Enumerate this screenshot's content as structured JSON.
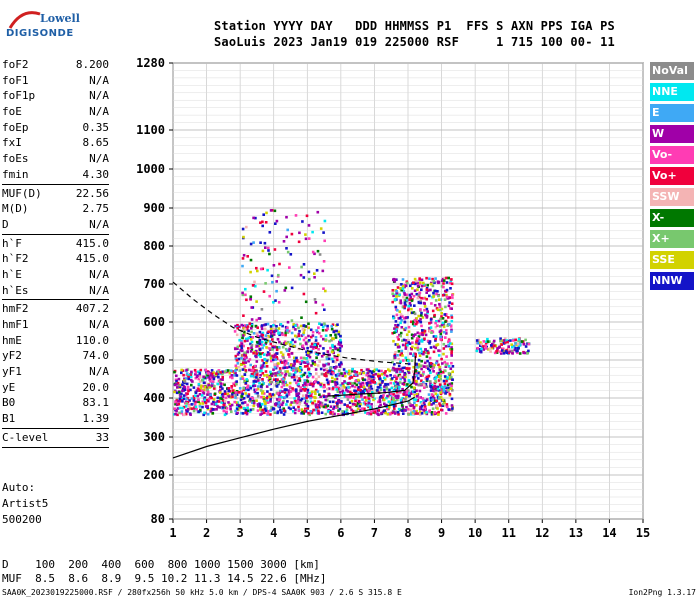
{
  "logo": {
    "line1": "Lowell",
    "line2": "DIGISONDE"
  },
  "header": {
    "line1": "Station YYYY DAY   DDD HHMMSS P1  FFS S AXN PPS IGA PS",
    "line2": "SaoLuis 2023 Jan19 019 225000 RSF     1 715 100 00- 11"
  },
  "params_group1": [
    {
      "name": "foF2",
      "value": "8.200"
    },
    {
      "name": "foF1",
      "value": "N/A"
    },
    {
      "name": "foF1p",
      "value": "N/A"
    },
    {
      "name": "foE",
      "value": "N/A"
    },
    {
      "name": "foEp",
      "value": "0.35"
    },
    {
      "name": "fxI",
      "value": "8.65"
    },
    {
      "name": "foEs",
      "value": "N/A"
    },
    {
      "name": "fmin",
      "value": "4.30"
    }
  ],
  "params_group2": [
    {
      "name": "MUF(D)",
      "value": "22.56"
    },
    {
      "name": "M(D)",
      "value": "2.75"
    },
    {
      "name": "D",
      "value": "N/A"
    }
  ],
  "params_group3": [
    {
      "name": "h`F",
      "value": "415.0"
    },
    {
      "name": "h`F2",
      "value": "415.0"
    },
    {
      "name": "h`E",
      "value": "N/A"
    },
    {
      "name": "h`Es",
      "value": "N/A"
    }
  ],
  "params_group4": [
    {
      "name": "hmF2",
      "value": "407.2"
    },
    {
      "name": "hmF1",
      "value": "N/A"
    },
    {
      "name": "hmE",
      "value": "110.0"
    },
    {
      "name": "yF2",
      "value": "74.0"
    },
    {
      "name": "yF1",
      "value": "N/A"
    },
    {
      "name": "yE",
      "value": "20.0"
    },
    {
      "name": "B0",
      "value": "83.1"
    },
    {
      "name": "B1",
      "value": "1.39"
    }
  ],
  "params_group5": [
    {
      "name": "C-level",
      "value": "33"
    }
  ],
  "auto": {
    "line1": "Auto:",
    "line2": "Artist5",
    "line3": "500200"
  },
  "legend": [
    {
      "label": "NoVal",
      "color": "#8c8c8c"
    },
    {
      "label": "NNE",
      "color": "#00e8f0"
    },
    {
      "label": "E",
      "color": "#3fa9f5"
    },
    {
      "label": "W",
      "color": "#a000a8"
    },
    {
      "label": "Vo-",
      "color": "#ff3cb4"
    },
    {
      "label": "Vo+",
      "color": "#f0003c"
    },
    {
      "label": "SSW",
      "color": "#f4b4b4"
    },
    {
      "label": "X-",
      "color": "#007800"
    },
    {
      "label": "X+",
      "color": "#78c86e"
    },
    {
      "label": "SSE",
      "color": "#d2d200"
    },
    {
      "label": "NNW",
      "color": "#1414c8"
    }
  ],
  "bottom": {
    "line1": "D    100  200  400  600  800 1000 1500 3000 [km]",
    "line2": "MUF  8.5  8.6  8.9  9.5 10.2 11.3 14.5 22.6 [MHz]"
  },
  "footer": {
    "left": "SAA0K_2023019225000.RSF / 280fx256h 50 kHz 5.0 km / DPS-4 SAA0K 903 / 2.6 S 315.8 E",
    "right": "Ion2Png 1.3.17"
  },
  "chart_data": {
    "type": "scatter",
    "x_ticks": [
      1,
      2,
      3,
      4,
      5,
      6,
      7,
      8,
      9,
      10,
      11,
      12,
      13,
      14,
      15
    ],
    "y_ticks": [
      80,
      200,
      300,
      400,
      500,
      600,
      700,
      800,
      900,
      1000,
      1100,
      1280
    ],
    "xlim": [
      1,
      15
    ],
    "y_scale": "non-linear (ionogram virtual height)",
    "ylim": [
      80,
      1280
    ],
    "grid": true,
    "legend_placement": "right",
    "echo_regions": [
      {
        "x_range": [
          1.0,
          9.3
        ],
        "y_range": [
          360,
          480
        ],
        "density": "high"
      },
      {
        "x_range": [
          2.8,
          6.0
        ],
        "y_range": [
          480,
          600
        ],
        "density": "medium"
      },
      {
        "x_range": [
          7.5,
          9.3
        ],
        "y_range": [
          480,
          720
        ],
        "density": "medium"
      },
      {
        "x_range": [
          3.0,
          5.5
        ],
        "y_range": [
          600,
          900
        ],
        "density": "low"
      },
      {
        "x_range": [
          10.0,
          11.6
        ],
        "y_range": [
          520,
          560
        ],
        "density": "low"
      }
    ],
    "traces": [
      {
        "style": "solid",
        "points": [
          [
            1.0,
            245
          ],
          [
            2.0,
            275
          ],
          [
            3.0,
            298
          ],
          [
            4.0,
            320
          ],
          [
            5.0,
            340
          ],
          [
            6.0,
            356
          ],
          [
            7.0,
            372
          ],
          [
            8.0,
            392
          ],
          [
            8.2,
            402
          ]
        ]
      },
      {
        "style": "solid",
        "points": [
          [
            5.6,
            405
          ],
          [
            6.5,
            410
          ],
          [
            7.3,
            414
          ],
          [
            7.9,
            420
          ],
          [
            8.15,
            440
          ],
          [
            8.2,
            470
          ],
          [
            8.22,
            510
          ]
        ]
      },
      {
        "style": "dashed",
        "points": [
          [
            1.0,
            705
          ],
          [
            1.6,
            660
          ],
          [
            2.2,
            620
          ],
          [
            2.8,
            585
          ],
          [
            3.5,
            560
          ],
          [
            4.3,
            540
          ],
          [
            5.2,
            520
          ],
          [
            6.2,
            505
          ],
          [
            7.2,
            495
          ],
          [
            8.0,
            490
          ]
        ]
      }
    ]
  }
}
